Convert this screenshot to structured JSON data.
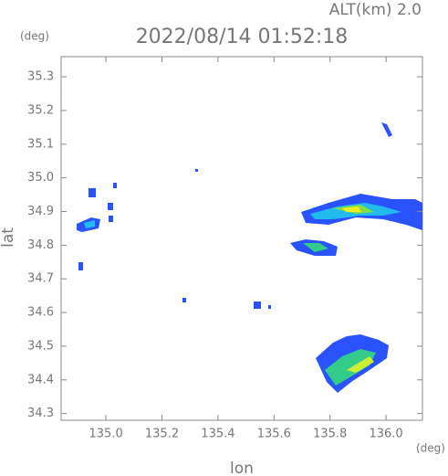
{
  "chart_data": {
    "type": "radar-map",
    "title": "2022/08/14 01:52:18",
    "altitude_label": "ALT(km) 2.0",
    "x_unit": "(deg)",
    "y_unit": "(deg)",
    "x_label": "lon",
    "y_label": "lat",
    "xlim": [
      134.84,
      136.13
    ],
    "ylim": [
      34.28,
      35.36
    ],
    "xticks": [
      {
        "value": 135,
        "label": "135.0"
      },
      135.2,
      135.4,
      135.6,
      135.8,
      {
        "value": 136,
        "label": "136.0"
      }
    ],
    "yticks": [
      34.3,
      34.4,
      34.5,
      34.6,
      34.7,
      34.8,
      34.9,
      {
        "value": 35,
        "label": "35.0"
      },
      35.1,
      35.2,
      35.3
    ]
  }
}
